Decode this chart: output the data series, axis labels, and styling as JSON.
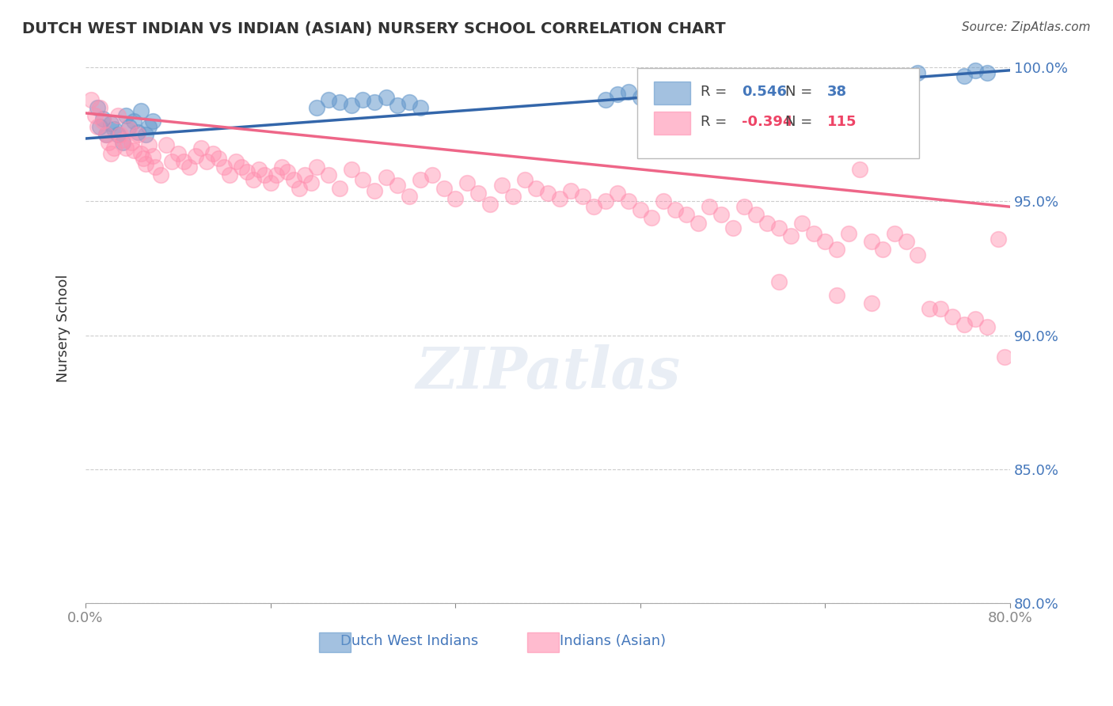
{
  "title": "DUTCH WEST INDIAN VS INDIAN (ASIAN) NURSERY SCHOOL CORRELATION CHART",
  "source": "Source: ZipAtlas.com",
  "ylabel": "Nursery School",
  "xlabel": "",
  "xlim": [
    0.0,
    0.8
  ],
  "ylim": [
    0.8,
    1.005
  ],
  "yticks": [
    0.8,
    0.85,
    0.9,
    0.95,
    1.0
  ],
  "ytick_labels": [
    "80.0%",
    "85.0%",
    "90.0%",
    "95.0%",
    "100.0%"
  ],
  "legend_blue_r": "0.546",
  "legend_blue_n": "38",
  "legend_pink_r": "-0.394",
  "legend_pink_n": "115",
  "blue_color": "#6699CC",
  "pink_color": "#FF8FAF",
  "blue_line_color": "#3366AA",
  "pink_line_color": "#EE6688",
  "blue_scatter": [
    [
      0.01,
      0.985
    ],
    [
      0.012,
      0.978
    ],
    [
      0.015,
      0.981
    ],
    [
      0.018,
      0.975
    ],
    [
      0.022,
      0.979
    ],
    [
      0.025,
      0.977
    ],
    [
      0.028,
      0.975
    ],
    [
      0.032,
      0.972
    ],
    [
      0.035,
      0.982
    ],
    [
      0.038,
      0.978
    ],
    [
      0.042,
      0.98
    ],
    [
      0.045,
      0.976
    ],
    [
      0.048,
      0.984
    ],
    [
      0.052,
      0.975
    ],
    [
      0.055,
      0.978
    ],
    [
      0.058,
      0.98
    ],
    [
      0.2,
      0.985
    ],
    [
      0.21,
      0.988
    ],
    [
      0.22,
      0.987
    ],
    [
      0.23,
      0.986
    ],
    [
      0.24,
      0.988
    ],
    [
      0.25,
      0.987
    ],
    [
      0.26,
      0.989
    ],
    [
      0.27,
      0.986
    ],
    [
      0.28,
      0.987
    ],
    [
      0.29,
      0.985
    ],
    [
      0.45,
      0.988
    ],
    [
      0.46,
      0.99
    ],
    [
      0.47,
      0.991
    ],
    [
      0.48,
      0.989
    ],
    [
      0.49,
      0.99
    ],
    [
      0.52,
      0.991
    ],
    [
      0.55,
      0.992
    ],
    [
      0.58,
      0.993
    ],
    [
      0.72,
      0.998
    ],
    [
      0.76,
      0.997
    ],
    [
      0.77,
      0.999
    ],
    [
      0.78,
      0.998
    ]
  ],
  "pink_scatter": [
    [
      0.005,
      0.988
    ],
    [
      0.008,
      0.982
    ],
    [
      0.01,
      0.978
    ],
    [
      0.012,
      0.985
    ],
    [
      0.015,
      0.98
    ],
    [
      0.018,
      0.975
    ],
    [
      0.02,
      0.972
    ],
    [
      0.022,
      0.968
    ],
    [
      0.025,
      0.97
    ],
    [
      0.028,
      0.982
    ],
    [
      0.03,
      0.975
    ],
    [
      0.032,
      0.973
    ],
    [
      0.035,
      0.97
    ],
    [
      0.038,
      0.977
    ],
    [
      0.04,
      0.972
    ],
    [
      0.042,
      0.969
    ],
    [
      0.045,
      0.975
    ],
    [
      0.048,
      0.968
    ],
    [
      0.05,
      0.966
    ],
    [
      0.052,
      0.964
    ],
    [
      0.055,
      0.971
    ],
    [
      0.058,
      0.967
    ],
    [
      0.06,
      0.963
    ],
    [
      0.065,
      0.96
    ],
    [
      0.07,
      0.971
    ],
    [
      0.075,
      0.965
    ],
    [
      0.08,
      0.968
    ],
    [
      0.085,
      0.965
    ],
    [
      0.09,
      0.963
    ],
    [
      0.095,
      0.967
    ],
    [
      0.1,
      0.97
    ],
    [
      0.105,
      0.965
    ],
    [
      0.11,
      0.968
    ],
    [
      0.115,
      0.966
    ],
    [
      0.12,
      0.963
    ],
    [
      0.125,
      0.96
    ],
    [
      0.13,
      0.965
    ],
    [
      0.135,
      0.963
    ],
    [
      0.14,
      0.961
    ],
    [
      0.145,
      0.958
    ],
    [
      0.15,
      0.962
    ],
    [
      0.155,
      0.96
    ],
    [
      0.16,
      0.957
    ],
    [
      0.165,
      0.96
    ],
    [
      0.17,
      0.963
    ],
    [
      0.175,
      0.961
    ],
    [
      0.18,
      0.958
    ],
    [
      0.185,
      0.955
    ],
    [
      0.19,
      0.96
    ],
    [
      0.195,
      0.957
    ],
    [
      0.2,
      0.963
    ],
    [
      0.21,
      0.96
    ],
    [
      0.22,
      0.955
    ],
    [
      0.23,
      0.962
    ],
    [
      0.24,
      0.958
    ],
    [
      0.25,
      0.954
    ],
    [
      0.26,
      0.959
    ],
    [
      0.27,
      0.956
    ],
    [
      0.28,
      0.952
    ],
    [
      0.29,
      0.958
    ],
    [
      0.3,
      0.96
    ],
    [
      0.31,
      0.955
    ],
    [
      0.32,
      0.951
    ],
    [
      0.33,
      0.957
    ],
    [
      0.34,
      0.953
    ],
    [
      0.35,
      0.949
    ],
    [
      0.36,
      0.956
    ],
    [
      0.37,
      0.952
    ],
    [
      0.38,
      0.958
    ],
    [
      0.39,
      0.955
    ],
    [
      0.4,
      0.953
    ],
    [
      0.41,
      0.951
    ],
    [
      0.42,
      0.954
    ],
    [
      0.43,
      0.952
    ],
    [
      0.44,
      0.948
    ],
    [
      0.45,
      0.95
    ],
    [
      0.46,
      0.953
    ],
    [
      0.47,
      0.95
    ],
    [
      0.48,
      0.947
    ],
    [
      0.49,
      0.944
    ],
    [
      0.5,
      0.95
    ],
    [
      0.51,
      0.947
    ],
    [
      0.52,
      0.945
    ],
    [
      0.53,
      0.942
    ],
    [
      0.54,
      0.948
    ],
    [
      0.55,
      0.945
    ],
    [
      0.56,
      0.94
    ],
    [
      0.57,
      0.948
    ],
    [
      0.58,
      0.945
    ],
    [
      0.59,
      0.942
    ],
    [
      0.6,
      0.94
    ],
    [
      0.61,
      0.937
    ],
    [
      0.62,
      0.942
    ],
    [
      0.63,
      0.938
    ],
    [
      0.64,
      0.935
    ],
    [
      0.65,
      0.932
    ],
    [
      0.66,
      0.938
    ],
    [
      0.67,
      0.962
    ],
    [
      0.68,
      0.935
    ],
    [
      0.69,
      0.932
    ],
    [
      0.7,
      0.938
    ],
    [
      0.71,
      0.935
    ],
    [
      0.72,
      0.93
    ],
    [
      0.73,
      0.91
    ],
    [
      0.74,
      0.91
    ],
    [
      0.75,
      0.907
    ],
    [
      0.76,
      0.904
    ],
    [
      0.77,
      0.906
    ],
    [
      0.78,
      0.903
    ],
    [
      0.79,
      0.936
    ],
    [
      0.795,
      0.892
    ],
    [
      0.6,
      0.92
    ],
    [
      0.65,
      0.915
    ],
    [
      0.68,
      0.912
    ]
  ],
  "blue_trendline": [
    [
      0.0,
      0.9735
    ],
    [
      0.8,
      0.999
    ]
  ],
  "pink_trendline": [
    [
      0.0,
      0.983
    ],
    [
      0.8,
      0.948
    ]
  ],
  "watermark": "ZIPatlas",
  "background_color": "#FFFFFF",
  "grid_color": "#CCCCCC"
}
